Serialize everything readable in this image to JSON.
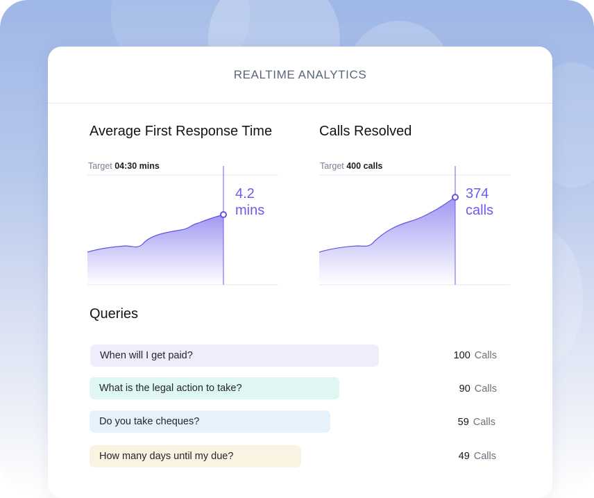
{
  "card": {
    "title": "REALTIME ANALYTICS"
  },
  "response_chart": {
    "title": "Average First Response Time",
    "target_label": "Target",
    "target_value": "04:30 mins",
    "metric_value": "4.2",
    "metric_unit": "mins"
  },
  "calls_chart": {
    "title": "Calls Resolved",
    "target_label": "Target",
    "target_value": "400 calls",
    "metric_value": "374",
    "metric_unit": "calls"
  },
  "queries": {
    "title": "Queries",
    "items": [
      {
        "question": "When will I get paid?",
        "count": "100",
        "unit": "Calls",
        "color": "#efedfb"
      },
      {
        "question": "What is the legal action to take?",
        "count": "90",
        "unit": "Calls",
        "color": "#e0f6f3"
      },
      {
        "question": "Do you take cheques?",
        "count": "59",
        "unit": "Calls",
        "color": "#e6f2fb"
      },
      {
        "question": "How many days until my due?",
        "count": "49",
        "unit": "Calls",
        "color": "#fbf3e2"
      }
    ]
  },
  "colors": {
    "accent": "#6a5cf0",
    "chart_line": "#5f52e6"
  }
}
